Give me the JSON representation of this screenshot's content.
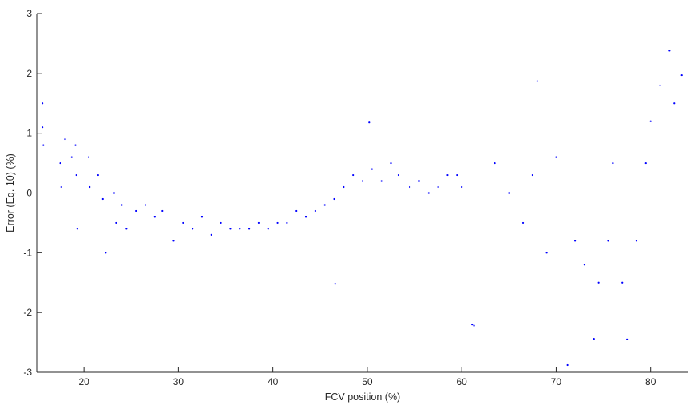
{
  "chart_data": {
    "type": "scatter",
    "title": "",
    "xlabel": "FCV position  (%)",
    "ylabel": "Error  (Eq. 10) (%)",
    "xlim": [
      15,
      84
    ],
    "ylim": [
      -3,
      3
    ],
    "x_ticks": [
      20,
      30,
      40,
      50,
      60,
      70,
      80
    ],
    "y_ticks": [
      -3,
      -2,
      -1,
      0,
      1,
      2,
      3
    ],
    "x_tick_labels": [
      "20",
      "30",
      "40",
      "50",
      "60",
      "70",
      "80"
    ],
    "y_tick_labels": [
      "-3",
      "-2",
      "-1",
      "0",
      "1",
      "2",
      "3"
    ],
    "grid": false,
    "legend": "none",
    "colors": {
      "marker": "#0000ff",
      "axis": "#262626"
    },
    "series": [
      {
        "marker": "dot",
        "points": [
          [
            15.6,
            1.5
          ],
          [
            15.6,
            1.1
          ],
          [
            15.7,
            0.8
          ],
          [
            17.5,
            0.5
          ],
          [
            17.6,
            0.1
          ],
          [
            18.0,
            0.9
          ],
          [
            18.7,
            0.6
          ],
          [
            19.1,
            0.8
          ],
          [
            19.2,
            0.3
          ],
          [
            19.3,
            -0.6
          ],
          [
            20.5,
            0.6
          ],
          [
            20.6,
            0.1
          ],
          [
            21.5,
            0.3
          ],
          [
            22.0,
            -0.1
          ],
          [
            22.3,
            -1.0
          ],
          [
            23.2,
            0.0
          ],
          [
            23.4,
            -0.5
          ],
          [
            24.0,
            -0.2
          ],
          [
            24.5,
            -0.6
          ],
          [
            25.5,
            -0.3
          ],
          [
            26.5,
            -0.2
          ],
          [
            27.5,
            -0.4
          ],
          [
            28.3,
            -0.3
          ],
          [
            29.5,
            -0.8
          ],
          [
            30.5,
            -0.5
          ],
          [
            31.5,
            -0.6
          ],
          [
            32.5,
            -0.4
          ],
          [
            33.5,
            -0.7
          ],
          [
            34.5,
            -0.5
          ],
          [
            35.5,
            -0.6
          ],
          [
            36.5,
            -0.6
          ],
          [
            37.5,
            -0.6
          ],
          [
            38.5,
            -0.5
          ],
          [
            39.5,
            -0.6
          ],
          [
            40.5,
            -0.5
          ],
          [
            41.5,
            -0.5
          ],
          [
            42.5,
            -0.3
          ],
          [
            43.5,
            -0.4
          ],
          [
            44.5,
            -0.3
          ],
          [
            45.5,
            -0.2
          ],
          [
            46.5,
            -0.1
          ],
          [
            46.6,
            -1.52
          ],
          [
            47.5,
            0.1
          ],
          [
            48.5,
            0.3
          ],
          [
            49.5,
            0.2
          ],
          [
            50.2,
            1.18
          ],
          [
            50.5,
            0.4
          ],
          [
            51.5,
            0.2
          ],
          [
            52.5,
            0.5
          ],
          [
            53.3,
            0.3
          ],
          [
            54.5,
            0.1
          ],
          [
            55.5,
            0.2
          ],
          [
            56.5,
            0.0
          ],
          [
            57.5,
            0.1
          ],
          [
            58.5,
            0.3
          ],
          [
            59.5,
            0.3
          ],
          [
            60.0,
            0.1
          ],
          [
            61.1,
            -2.2
          ],
          [
            61.3,
            -2.22
          ],
          [
            63.5,
            0.5
          ],
          [
            65.0,
            0.0
          ],
          [
            66.5,
            -0.5
          ],
          [
            67.5,
            0.3
          ],
          [
            68.0,
            1.87
          ],
          [
            69.0,
            -1.0
          ],
          [
            70.0,
            0.6
          ],
          [
            71.2,
            -2.88
          ],
          [
            72.0,
            -0.8
          ],
          [
            73.0,
            -1.2
          ],
          [
            74.0,
            -2.44
          ],
          [
            74.5,
            -1.5
          ],
          [
            75.5,
            -0.8
          ],
          [
            76.0,
            0.5
          ],
          [
            77.0,
            -1.5
          ],
          [
            77.5,
            -2.45
          ],
          [
            78.5,
            -0.8
          ],
          [
            79.5,
            0.5
          ],
          [
            80.0,
            1.2
          ],
          [
            81.0,
            1.8
          ],
          [
            82.0,
            2.38
          ],
          [
            82.5,
            1.5
          ],
          [
            83.3,
            1.97
          ]
        ]
      }
    ]
  }
}
